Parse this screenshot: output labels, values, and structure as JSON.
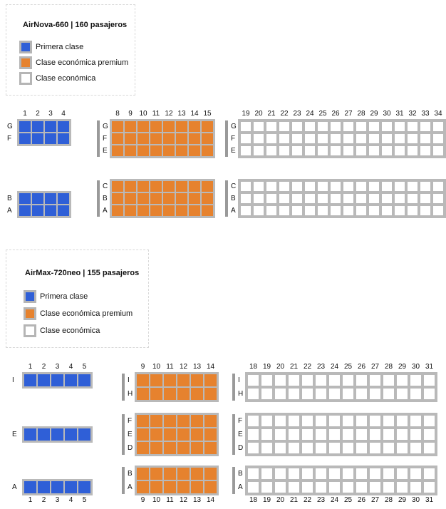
{
  "planes": [
    {
      "id": "airnova",
      "title": "AirNova-660 | 160 pasajeros",
      "legend": [
        {
          "label": "Primera clase",
          "color": "#2f5fd7"
        },
        {
          "label": "Clase económica premium",
          "color": "#e6822e"
        },
        {
          "label": "Clase económica",
          "color": "#ffffff"
        }
      ],
      "sections": [
        {
          "class": "first",
          "color": "#2f5fd7",
          "columns": [
            1,
            2,
            3,
            4
          ],
          "groups": [
            [
              "G",
              "F"
            ],
            [
              "B",
              "A"
            ]
          ],
          "showRowLabelsInside": false
        },
        {
          "class": "premium",
          "color": "#e6822e",
          "columns": [
            8,
            9,
            10,
            11,
            12,
            13,
            14,
            15
          ],
          "groups": [
            [
              "G",
              "F",
              "E"
            ],
            [
              "C",
              "B",
              "A"
            ]
          ],
          "showRowLabelsInside": true
        },
        {
          "class": "economy",
          "color": "#ffffff",
          "columns": [
            19,
            20,
            21,
            22,
            23,
            24,
            25,
            26,
            27,
            28,
            29,
            30,
            31,
            32,
            33,
            34
          ],
          "groups": [
            [
              "G",
              "F",
              "E"
            ],
            [
              "C",
              "B",
              "A"
            ]
          ],
          "showRowLabelsInside": true
        }
      ]
    },
    {
      "id": "airmax",
      "title": "AirMax-720neo | 155 pasajeros",
      "legend": [
        {
          "label": "Primera clase",
          "color": "#2f5fd7"
        },
        {
          "label": "Clase económica premium",
          "color": "#e6822e"
        },
        {
          "label": "Clase económica",
          "color": "#ffffff"
        }
      ],
      "sections": [
        {
          "class": "first",
          "color": "#2f5fd7",
          "columns": [
            1,
            2,
            3,
            4,
            5
          ],
          "groups": [
            [
              "I"
            ],
            [
              "E"
            ],
            [
              "A"
            ]
          ],
          "showRowLabelsInside": false
        },
        {
          "class": "premium",
          "color": "#e6822e",
          "columns": [
            9,
            10,
            11,
            12,
            13,
            14
          ],
          "groups": [
            [
              "I",
              "H"
            ],
            [
              "F",
              "E",
              "D"
            ],
            [
              "B",
              "A"
            ]
          ],
          "showRowLabelsInside": true
        },
        {
          "class": "economy",
          "color": "#ffffff",
          "columns": [
            18,
            19,
            20,
            21,
            22,
            23,
            24,
            25,
            26,
            27,
            28,
            29,
            30,
            31
          ],
          "groups": [
            [
              "I",
              "H"
            ],
            [
              "F",
              "E",
              "D"
            ],
            [
              "B",
              "A"
            ]
          ],
          "showRowLabelsInside": true
        }
      ]
    }
  ]
}
